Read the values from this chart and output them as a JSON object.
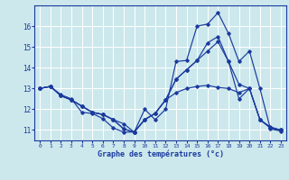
{
  "xlabel": "Graphe des températures (°c)",
  "bg_color": "#cce8ec",
  "line_color": "#1a3a9e",
  "grid_color": "#ffffff",
  "xlim": [
    -0.5,
    23.5
  ],
  "ylim": [
    10.5,
    17.0
  ],
  "yticks": [
    11,
    12,
    13,
    14,
    15,
    16
  ],
  "xticks": [
    0,
    1,
    2,
    3,
    4,
    5,
    6,
    7,
    8,
    9,
    10,
    11,
    12,
    13,
    14,
    15,
    16,
    17,
    18,
    19,
    20,
    21,
    22,
    23
  ],
  "series": [
    [
      13.0,
      13.1,
      12.7,
      12.5,
      11.85,
      11.8,
      11.55,
      11.1,
      10.9,
      10.9,
      12.0,
      11.5,
      12.0,
      14.3,
      14.35,
      16.0,
      16.1,
      16.65,
      15.65,
      14.3,
      14.8,
      13.0,
      11.05,
      10.95
    ],
    [
      13.0,
      13.1,
      12.65,
      12.45,
      12.15,
      11.85,
      11.75,
      11.5,
      11.3,
      10.9,
      11.5,
      11.8,
      12.45,
      13.45,
      13.9,
      14.35,
      15.2,
      15.5,
      14.3,
      12.5,
      13.0,
      11.5,
      11.1,
      11.0
    ],
    [
      13.0,
      13.1,
      12.65,
      12.45,
      12.15,
      11.85,
      11.75,
      11.5,
      11.05,
      10.9,
      11.5,
      11.8,
      12.45,
      13.45,
      13.9,
      14.35,
      14.8,
      15.25,
      14.3,
      13.2,
      13.0,
      11.5,
      11.15,
      11.0
    ],
    [
      13.0,
      13.1,
      12.65,
      12.45,
      12.15,
      11.85,
      11.75,
      11.5,
      11.05,
      10.9,
      11.5,
      11.8,
      12.45,
      12.8,
      13.0,
      13.1,
      13.15,
      13.05,
      13.0,
      12.8,
      13.0,
      11.5,
      11.1,
      11.0
    ]
  ]
}
